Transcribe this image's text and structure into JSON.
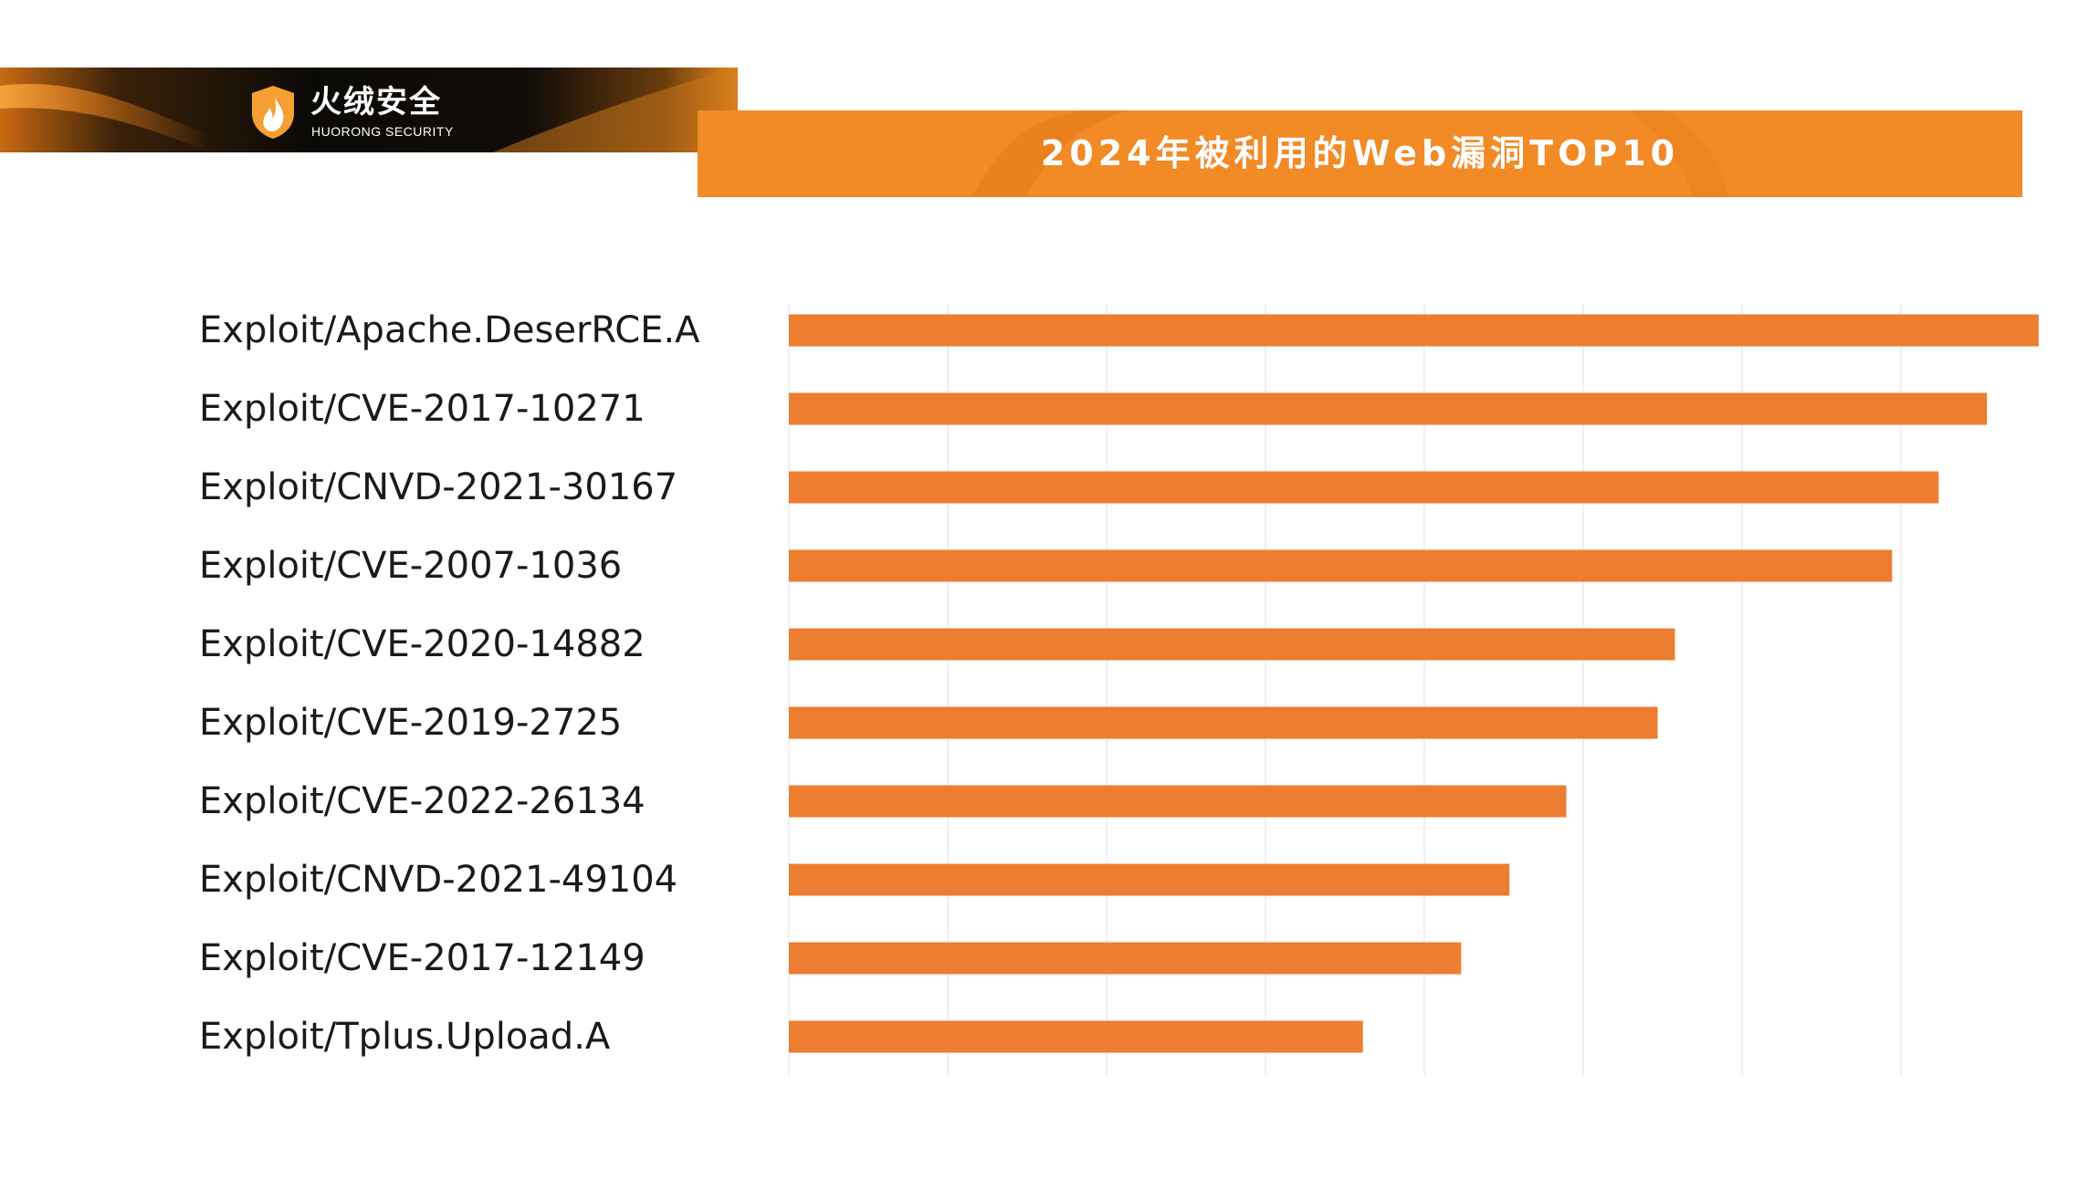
{
  "header": {
    "brand_name": "火绒安全",
    "brand_sub": "HUORONG SECURITY",
    "title": "2024年被利用的Web漏洞TOP10"
  },
  "colors": {
    "bar": "#ed7d31",
    "title_bar": "#f28a26",
    "grid": "#ececec"
  },
  "chart_data": {
    "type": "bar",
    "orientation": "horizontal",
    "title": "2024年被利用的Web漏洞TOP10",
    "categories": [
      "Exploit/Apache.DeserRCE.A",
      "Exploit/CVE-2017-10271",
      "Exploit/CNVD-2021-30167",
      "Exploit/CVE-2007-1036",
      "Exploit/CVE-2020-14882",
      "Exploit/CVE-2019-2725",
      "Exploit/CVE-2022-26134",
      "Exploit/CNVD-2021-49104",
      "Exploit/CVE-2017-12149",
      "Exploit/Tplus.Upload.A"
    ],
    "values": [
      7.25,
      6.95,
      6.67,
      6.4,
      5.14,
      5.04,
      4.51,
      4.18,
      3.9,
      3.33
    ],
    "xlim": [
      0,
      7.5
    ],
    "grid": true,
    "x_tick_labels_shown": false,
    "legend": "none"
  }
}
